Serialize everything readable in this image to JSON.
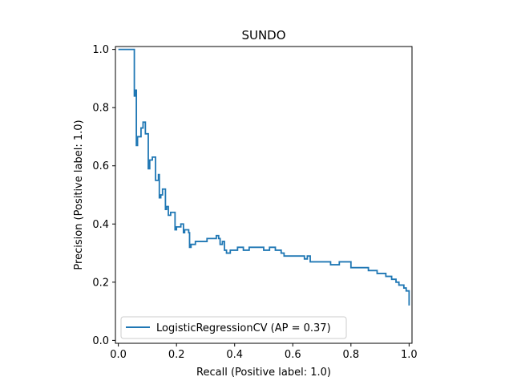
{
  "chart_data": {
    "type": "line",
    "title": "SUNDO",
    "xlabel": "Recall (Positive label: 1.0)",
    "ylabel": "Precision (Positive label: 1.0)",
    "xlim": [
      -0.01,
      1.01
    ],
    "ylim": [
      -0.01,
      1.01
    ],
    "xticks": [
      0.0,
      0.2,
      0.4,
      0.6,
      0.8,
      1.0
    ],
    "xtick_labels": [
      "0.0",
      "0.2",
      "0.4",
      "0.6",
      "0.8",
      "1.0"
    ],
    "yticks": [
      0.0,
      0.2,
      0.4,
      0.6,
      0.8,
      1.0
    ],
    "ytick_labels": [
      "0.0",
      "0.2",
      "0.4",
      "0.6",
      "0.8",
      "1.0"
    ],
    "grid": false,
    "legend_position": "lower-left",
    "color": "#1f77b4",
    "series": [
      {
        "name": "LogisticRegressionCV (AP = 0.37)",
        "step": "post",
        "points": [
          [
            0.0,
            1.0
          ],
          [
            0.055,
            1.0
          ],
          [
            0.055,
            0.84
          ],
          [
            0.057,
            0.86
          ],
          [
            0.062,
            0.86
          ],
          [
            0.062,
            0.67
          ],
          [
            0.066,
            0.7
          ],
          [
            0.078,
            0.7
          ],
          [
            0.078,
            0.73
          ],
          [
            0.085,
            0.75
          ],
          [
            0.093,
            0.75
          ],
          [
            0.093,
            0.71
          ],
          [
            0.098,
            0.71
          ],
          [
            0.103,
            0.59
          ],
          [
            0.108,
            0.62
          ],
          [
            0.117,
            0.62
          ],
          [
            0.117,
            0.63
          ],
          [
            0.128,
            0.63
          ],
          [
            0.128,
            0.55
          ],
          [
            0.138,
            0.57
          ],
          [
            0.141,
            0.57
          ],
          [
            0.141,
            0.49
          ],
          [
            0.146,
            0.5
          ],
          [
            0.152,
            0.52
          ],
          [
            0.162,
            0.52
          ],
          [
            0.162,
            0.45
          ],
          [
            0.166,
            0.46
          ],
          [
            0.17,
            0.46
          ],
          [
            0.172,
            0.43
          ],
          [
            0.18,
            0.44
          ],
          [
            0.19,
            0.44
          ],
          [
            0.195,
            0.38
          ],
          [
            0.2,
            0.39
          ],
          [
            0.215,
            0.4
          ],
          [
            0.221,
            0.4
          ],
          [
            0.224,
            0.37
          ],
          [
            0.228,
            0.38
          ],
          [
            0.242,
            0.37
          ],
          [
            0.245,
            0.32
          ],
          [
            0.25,
            0.33
          ],
          [
            0.265,
            0.34
          ],
          [
            0.285,
            0.34
          ],
          [
            0.29,
            0.34
          ],
          [
            0.305,
            0.35
          ],
          [
            0.32,
            0.35
          ],
          [
            0.325,
            0.35
          ],
          [
            0.337,
            0.36
          ],
          [
            0.345,
            0.35
          ],
          [
            0.35,
            0.33
          ],
          [
            0.358,
            0.34
          ],
          [
            0.365,
            0.31
          ],
          [
            0.372,
            0.3
          ],
          [
            0.385,
            0.31
          ],
          [
            0.4,
            0.31
          ],
          [
            0.41,
            0.32
          ],
          [
            0.43,
            0.31
          ],
          [
            0.45,
            0.32
          ],
          [
            0.48,
            0.32
          ],
          [
            0.5,
            0.31
          ],
          [
            0.52,
            0.32
          ],
          [
            0.54,
            0.31
          ],
          [
            0.56,
            0.3
          ],
          [
            0.57,
            0.29
          ],
          [
            0.6,
            0.29
          ],
          [
            0.63,
            0.29
          ],
          [
            0.64,
            0.28
          ],
          [
            0.65,
            0.29
          ],
          [
            0.66,
            0.27
          ],
          [
            0.7,
            0.27
          ],
          [
            0.73,
            0.26
          ],
          [
            0.76,
            0.27
          ],
          [
            0.79,
            0.27
          ],
          [
            0.8,
            0.25
          ],
          [
            0.83,
            0.25
          ],
          [
            0.85,
            0.25
          ],
          [
            0.86,
            0.24
          ],
          [
            0.89,
            0.23
          ],
          [
            0.91,
            0.23
          ],
          [
            0.92,
            0.22
          ],
          [
            0.94,
            0.21
          ],
          [
            0.955,
            0.2
          ],
          [
            0.965,
            0.19
          ],
          [
            0.975,
            0.19
          ],
          [
            0.982,
            0.18
          ],
          [
            0.99,
            0.17
          ],
          [
            0.997,
            0.17
          ],
          [
            1.0,
            0.12
          ]
        ]
      }
    ]
  }
}
